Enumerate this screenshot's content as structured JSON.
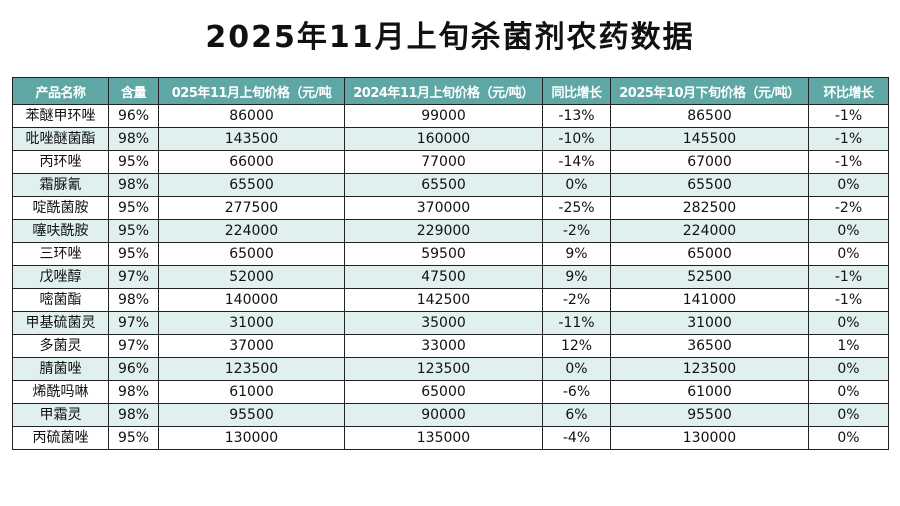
{
  "title": "2025年11月上旬杀菌剂农药数据",
  "table": {
    "headers": [
      "产品名称",
      "含量",
      "025年11月上旬价格（元/吨",
      "2024年11月上旬价格（元/吨）",
      "同比增长",
      "2025年10月下旬价格（元/吨）",
      "环比增长"
    ],
    "rows": [
      [
        "苯醚甲环唑",
        "96%",
        "86000",
        "99000",
        "-13%",
        "86500",
        "-1%"
      ],
      [
        "吡唑醚菌酯",
        "98%",
        "143500",
        "160000",
        "-10%",
        "145500",
        "-1%"
      ],
      [
        "丙环唑",
        "95%",
        "66000",
        "77000",
        "-14%",
        "67000",
        "-1%"
      ],
      [
        "霜脲氰",
        "98%",
        "65500",
        "65500",
        "0%",
        "65500",
        "0%"
      ],
      [
        "啶酰菌胺",
        "95%",
        "277500",
        "370000",
        "-25%",
        "282500",
        "-2%"
      ],
      [
        "噻呋酰胺",
        "95%",
        "224000",
        "229000",
        "-2%",
        "224000",
        "0%"
      ],
      [
        "三环唑",
        "95%",
        "65000",
        "59500",
        "9%",
        "65000",
        "0%"
      ],
      [
        "戊唑醇",
        "97%",
        "52000",
        "47500",
        "9%",
        "52500",
        "-1%"
      ],
      [
        "嘧菌酯",
        "98%",
        "140000",
        "142500",
        "-2%",
        "141000",
        "-1%"
      ],
      [
        "甲基硫菌灵",
        "97%",
        "31000",
        "35000",
        "-11%",
        "31000",
        "0%"
      ],
      [
        "多菌灵",
        "97%",
        "37000",
        "33000",
        "12%",
        "36500",
        "1%"
      ],
      [
        "腈菌唑",
        "96%",
        "123500",
        "123500",
        "0%",
        "123500",
        "0%"
      ],
      [
        "烯酰吗啉",
        "98%",
        "61000",
        "65000",
        "-6%",
        "61000",
        "0%"
      ],
      [
        "甲霜灵",
        "98%",
        "95500",
        "90000",
        "6%",
        "95500",
        "0%"
      ],
      [
        "丙硫菌唑",
        "95%",
        "130000",
        "135000",
        "-4%",
        "130000",
        "0%"
      ]
    ]
  }
}
